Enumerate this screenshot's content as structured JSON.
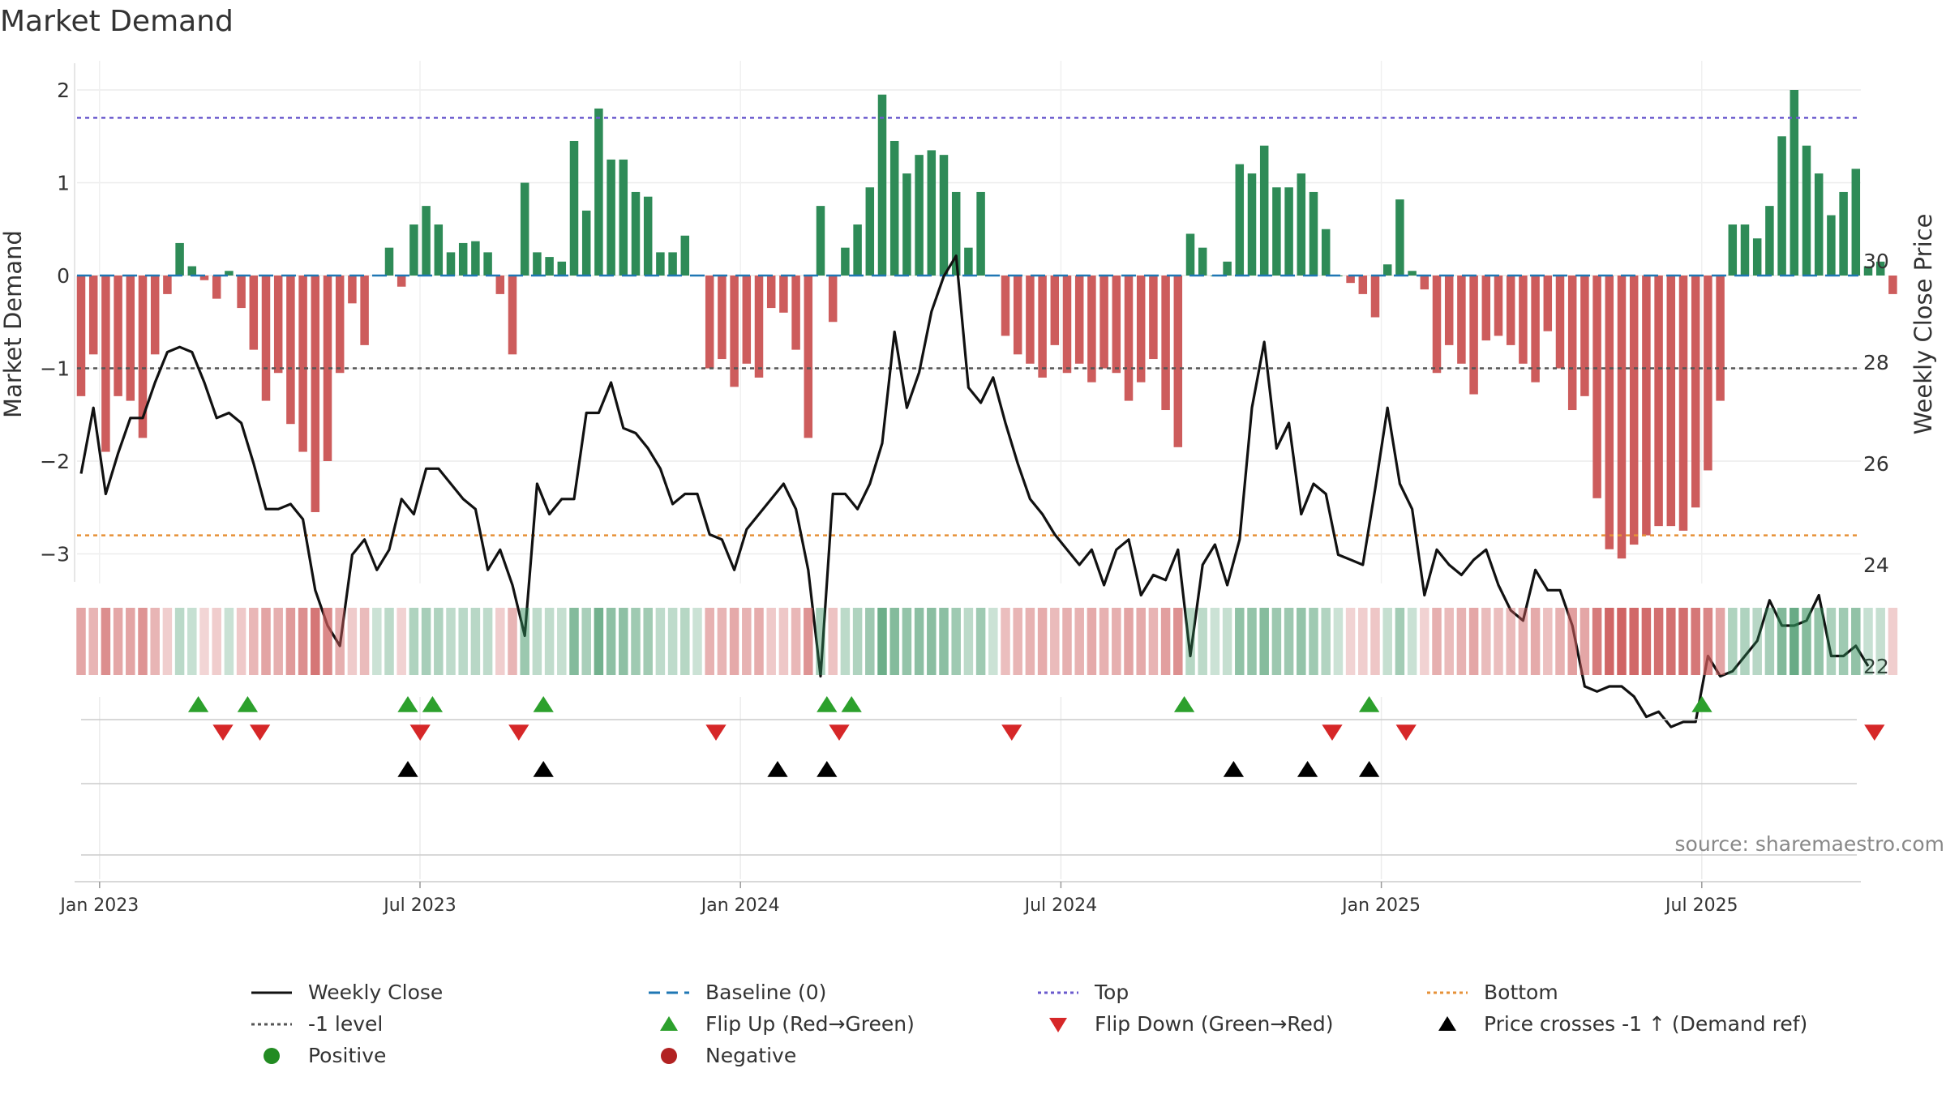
{
  "chart_data": {
    "type": "bar",
    "title": "Market Demand",
    "ylabel_left": "Market Demand",
    "ylabel_right": "Weekly Close Price",
    "y_left_ticks": [
      2,
      1,
      0,
      -1,
      -2,
      -3
    ],
    "y_left_tick_labels": [
      "2",
      "1",
      "0",
      "−1",
      "−2",
      "−3"
    ],
    "y_left_range": [
      -3.3,
      2.2
    ],
    "y_right_ticks": [
      22,
      24,
      26,
      28,
      30
    ],
    "y_right_range": [
      21,
      31
    ],
    "x_tick_labels": [
      "Jan 2023",
      "Jul 2023",
      "Jan 2024",
      "Jul 2024",
      "Jan 2025",
      "Jul 2025"
    ],
    "x_tick_week_index": [
      1.5,
      27.5,
      53.5,
      79.5,
      105.5,
      131.5
    ],
    "top_level": 1.7,
    "bottom_level": -2.8,
    "minus_one_level": -1,
    "source": "source: sharemaestro.com",
    "colors": {
      "positive_bar": "#2e8b57",
      "negative_bar": "#cd5c5c",
      "close_line": "#111111",
      "baseline": "#1f77b4",
      "top": "#6a5acd",
      "bottom": "#e69138",
      "minus_one": "#555555",
      "flip_up": "#2ca02c",
      "flip_down": "#d62728",
      "cross": "#000000",
      "positive_dot": "#228b22",
      "negative_dot": "#b22222"
    },
    "demand": [
      -1.3,
      -0.85,
      -1.9,
      -1.3,
      -1.35,
      -1.75,
      -0.85,
      -0.2,
      0.35,
      0.1,
      -0.05,
      -0.25,
      0.05,
      -0.35,
      -0.8,
      -1.35,
      -1.05,
      -1.6,
      -1.9,
      -2.55,
      -2.0,
      -1.05,
      -0.3,
      -0.75,
      0.0,
      0.3,
      -0.12,
      0.55,
      0.75,
      0.55,
      0.25,
      0.35,
      0.37,
      0.25,
      -0.2,
      -0.85,
      1.0,
      0.25,
      0.2,
      0.15,
      1.45,
      0.7,
      1.8,
      1.25,
      1.25,
      0.9,
      0.85,
      0.25,
      0.25,
      0.43,
      0.0,
      -1.0,
      -0.9,
      -1.2,
      -0.95,
      -1.1,
      -0.35,
      -0.4,
      -0.8,
      -1.75,
      0.75,
      -0.5,
      0.3,
      0.55,
      0.95,
      1.95,
      1.45,
      1.1,
      1.3,
      1.35,
      1.3,
      0.9,
      0.3,
      0.9,
      0.0,
      -0.65,
      -0.85,
      -0.95,
      -1.1,
      -0.75,
      -1.05,
      -0.95,
      -1.15,
      -1.0,
      -1.05,
      -1.35,
      -1.15,
      -0.9,
      -1.45,
      -1.85,
      0.45,
      0.3,
      0.0,
      0.15,
      1.2,
      1.1,
      1.4,
      0.95,
      0.95,
      1.1,
      0.9,
      0.5,
      0.0,
      -0.08,
      -0.2,
      -0.45,
      0.12,
      0.82,
      0.05,
      -0.15,
      -1.05,
      -0.75,
      -0.95,
      -1.28,
      -0.7,
      -0.65,
      -0.75,
      -0.95,
      -1.15,
      -0.6,
      -1.0,
      -1.45,
      -1.3,
      -2.4,
      -2.95,
      -3.05,
      -2.9,
      -2.8,
      -2.7,
      -2.7,
      -2.75,
      -2.5,
      -2.1,
      -1.35,
      0.55,
      0.55,
      0.4,
      0.75,
      1.5,
      2.0,
      1.4,
      1.1,
      0.65,
      0.9,
      1.15,
      0.1,
      0.15,
      -0.2
    ],
    "close": [
      25.8,
      27.1,
      25.4,
      26.2,
      26.9,
      26.9,
      27.6,
      28.2,
      28.3,
      28.2,
      27.6,
      26.9,
      27.0,
      26.8,
      26.0,
      25.1,
      25.1,
      25.2,
      24.9,
      23.5,
      22.8,
      22.4,
      24.2,
      24.5,
      23.9,
      24.3,
      25.3,
      25.0,
      25.9,
      25.9,
      25.6,
      25.3,
      25.1,
      23.9,
      24.3,
      23.6,
      22.6,
      25.6,
      25.0,
      25.3,
      25.3,
      27.0,
      27.0,
      27.6,
      26.7,
      26.6,
      26.3,
      25.9,
      25.2,
      25.4,
      25.4,
      24.6,
      24.5,
      23.9,
      24.7,
      25.0,
      25.3,
      25.6,
      25.1,
      23.9,
      21.8,
      25.4,
      25.4,
      25.1,
      25.6,
      26.4,
      28.6,
      27.1,
      27.8,
      29.0,
      29.7,
      30.1,
      27.5,
      27.2,
      27.7,
      26.8,
      26.0,
      25.3,
      25.0,
      24.6,
      24.3,
      24.0,
      24.3,
      23.6,
      24.3,
      24.5,
      23.4,
      23.8,
      23.7,
      24.3,
      22.2,
      24.0,
      24.4,
      23.6,
      24.5,
      27.1,
      28.4,
      26.3,
      26.8,
      25.0,
      25.6,
      25.4,
      24.2,
      24.1,
      24.0,
      25.5,
      27.1,
      25.6,
      25.1,
      23.4,
      24.3,
      24.0,
      23.8,
      24.1,
      24.3,
      23.6,
      23.1,
      22.9,
      23.9,
      23.5,
      23.5,
      22.8,
      21.6,
      21.5,
      21.6,
      21.6,
      21.4,
      21.0,
      21.1,
      20.8,
      20.9,
      20.9,
      22.2,
      21.8,
      21.9,
      22.2,
      22.5,
      23.3,
      22.8,
      22.8,
      22.9,
      23.4,
      22.2,
      22.2,
      22.4,
      22.0
    ],
    "flip_up_weeks": [
      8,
      12,
      25,
      27,
      36,
      59,
      61,
      88,
      103,
      130
    ],
    "flip_down_weeks": [
      10,
      13,
      26,
      34,
      50,
      60,
      74,
      100,
      106,
      144
    ],
    "cross_weeks": [
      25,
      36,
      55,
      59,
      92,
      98,
      103
    ],
    "legend": [
      {
        "label": "Weekly Close",
        "kind": "line"
      },
      {
        "label": "Baseline (0)",
        "kind": "dash"
      },
      {
        "label": "Top",
        "kind": "dot"
      },
      {
        "label": "Bottom",
        "kind": "dot"
      },
      {
        "label": "-1 level",
        "kind": "dot"
      },
      {
        "label": "Flip Up (Red→Green)",
        "kind": "up"
      },
      {
        "label": "Flip Down (Green→Red)",
        "kind": "down"
      },
      {
        "label": "Price crosses -1 ↑ (Demand ref)",
        "kind": "cross"
      },
      {
        "label": "Positive",
        "kind": "circle"
      },
      {
        "label": "Negative",
        "kind": "circle"
      }
    ]
  }
}
